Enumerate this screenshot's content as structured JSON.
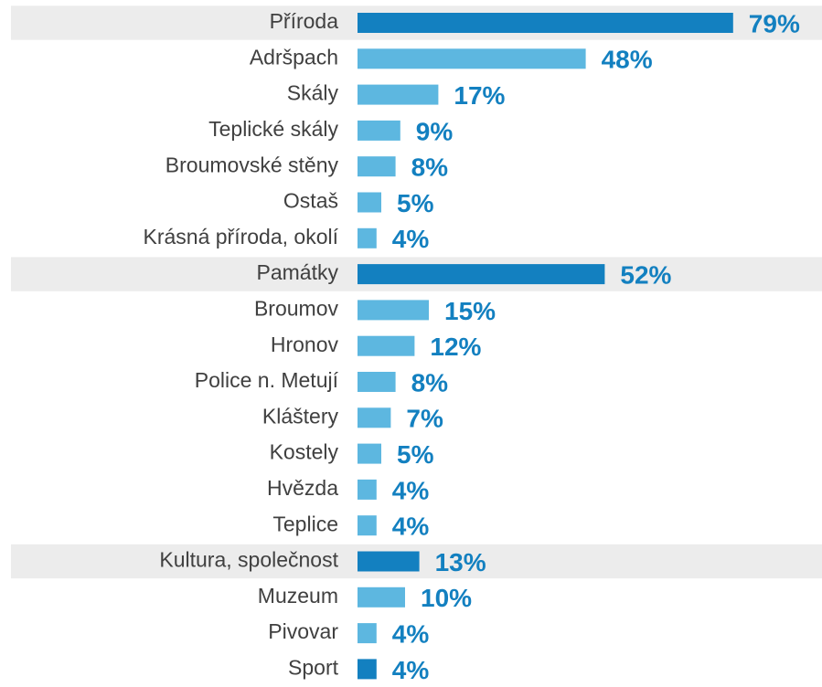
{
  "chart_data": {
    "type": "barh",
    "categories": [
      "Příroda",
      "Adršpach",
      "Skály",
      "Teplické skály",
      "Broumovské stěny",
      "Ostaš",
      "Krásná příroda, okolí",
      "Památky",
      "Broumov",
      "Hronov",
      "Police n. Metují",
      "Kláštery",
      "Kostely",
      "Hvězda",
      "Teplice",
      "Kultura, společnost",
      "Muzeum",
      "Pivovar",
      "Sport"
    ],
    "values": [
      79,
      48,
      17,
      9,
      8,
      5,
      4,
      52,
      15,
      12,
      8,
      7,
      5,
      4,
      4,
      13,
      10,
      4,
      4
    ],
    "value_labels": [
      "79%",
      "48%",
      "17%",
      "9%",
      "8%",
      "5%",
      "4%",
      "52%",
      "15%",
      "12%",
      "8%",
      "7%",
      "5%",
      "4%",
      "4%",
      "13%",
      "10%",
      "4%",
      "4%"
    ],
    "colors": [
      "#1380c0",
      "#5db7e0",
      "#5db7e0",
      "#5db7e0",
      "#5db7e0",
      "#5db7e0",
      "#5db7e0",
      "#1380c0",
      "#5db7e0",
      "#5db7e0",
      "#5db7e0",
      "#5db7e0",
      "#5db7e0",
      "#5db7e0",
      "#5db7e0",
      "#1380c0",
      "#5db7e0",
      "#5db7e0",
      "#1380c0"
    ],
    "banded": [
      true,
      false,
      false,
      false,
      false,
      false,
      false,
      true,
      false,
      false,
      false,
      false,
      false,
      false,
      false,
      true,
      false,
      false,
      false
    ],
    "band_color": "#ececec",
    "label_color": "#1380c0",
    "xlim": [
      0,
      100
    ]
  }
}
